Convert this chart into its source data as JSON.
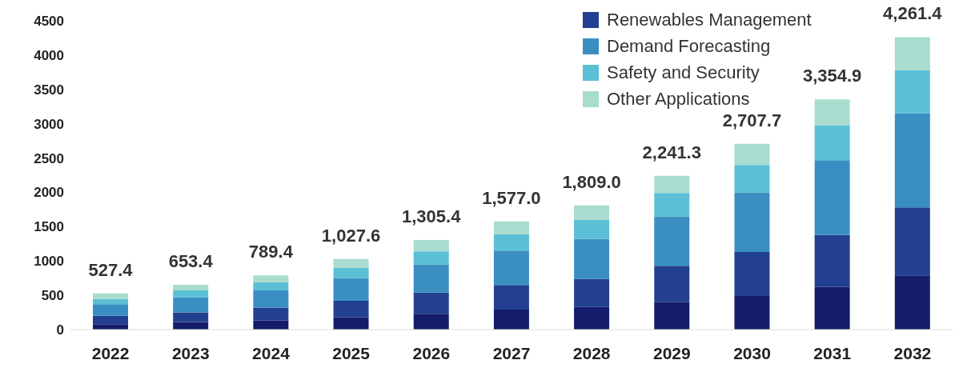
{
  "chart_data": {
    "type": "bar",
    "stacked": true,
    "categories": [
      "2022",
      "2023",
      "2024",
      "2025",
      "2026",
      "2027",
      "2028",
      "2029",
      "2030",
      "2031",
      "2032"
    ],
    "series": [
      {
        "color": "#141c6b",
        "values": [
          80,
          110,
          130,
          180,
          230,
          290,
          330,
          400,
          490,
          620,
          790
        ]
      },
      {
        "name": "Renewables Management",
        "color": "#233f8f",
        "values": [
          120,
          140,
          190,
          240,
          310,
          360,
          410,
          530,
          640,
          760,
          990
        ]
      },
      {
        "name": "Demand Forecasting",
        "color": "#3a8fc2",
        "values": [
          170,
          220,
          250,
          330,
          410,
          500,
          580,
          720,
          870,
          1090,
          1370
        ]
      },
      {
        "name": "Safety and Security",
        "color": "#5bbfd6",
        "values": [
          80,
          100,
          120,
          150,
          190,
          240,
          280,
          340,
          400,
          510,
          630
        ]
      },
      {
        "name": "Other Applications",
        "color": "#a8dccf",
        "values": [
          77.4,
          83.4,
          99.4,
          127.6,
          165.4,
          187.0,
          209.0,
          251.3,
          307.7,
          374.9,
          481.4
        ]
      }
    ],
    "totals": [
      "527.4",
      "653.4",
      "789.4",
      "1,027.6",
      "1,305.4",
      "1,577.0",
      "1,809.0",
      "2,241.3",
      "2,707.7",
      "3,354.9",
      "4,261.4"
    ],
    "ylim": [
      0,
      4500
    ],
    "yticks": [
      0,
      500,
      1000,
      1500,
      2000,
      2500,
      3000,
      3500,
      4000,
      4500
    ],
    "grid": false,
    "legend": "top right"
  }
}
